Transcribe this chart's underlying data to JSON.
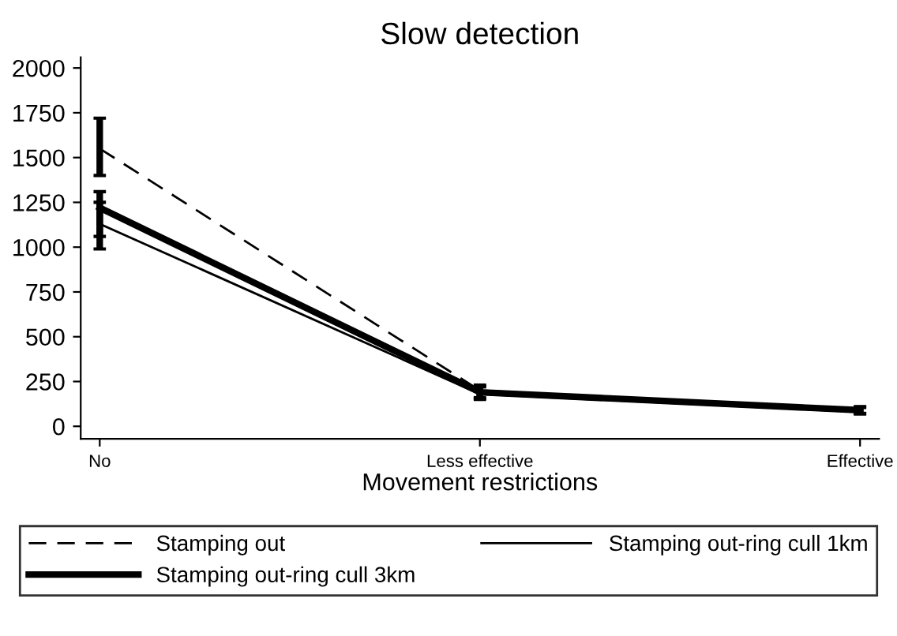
{
  "chart_data": {
    "type": "line",
    "title": "Slow detection",
    "xlabel": "Movement restrictions",
    "categories": [
      "No",
      "Less effective",
      "Effective"
    ],
    "series": [
      {
        "name": "Stamping out",
        "color": "#000000",
        "line_style": "dashed",
        "values": [
          1550,
          200,
          90
        ],
        "errors": [
          [
            1400,
            1720
          ],
          [
            160,
            230
          ],
          [
            70,
            110
          ]
        ]
      },
      {
        "name": "Stamping out-ring cull 1km",
        "color": "#000000",
        "line_style": "solid",
        "values": [
          1130,
          180,
          80
        ],
        "errors": [
          [
            990,
            1250
          ],
          [
            150,
            220
          ],
          [
            70,
            105
          ]
        ]
      },
      {
        "name": "Stamping out-ring cull 3km",
        "color": "#000000",
        "line_style": "solid",
        "values": [
          1220,
          190,
          90
        ],
        "errors": [
          [
            1060,
            1310
          ],
          [
            155,
            225
          ],
          [
            72,
            108
          ]
        ]
      }
    ],
    "ylim": [
      -70,
      2060
    ],
    "yticks": [
      0,
      250,
      500,
      750,
      1000,
      1250,
      1500,
      1750,
      2000
    ],
    "grid": false,
    "legend": "bottom",
    "marker": "none"
  }
}
